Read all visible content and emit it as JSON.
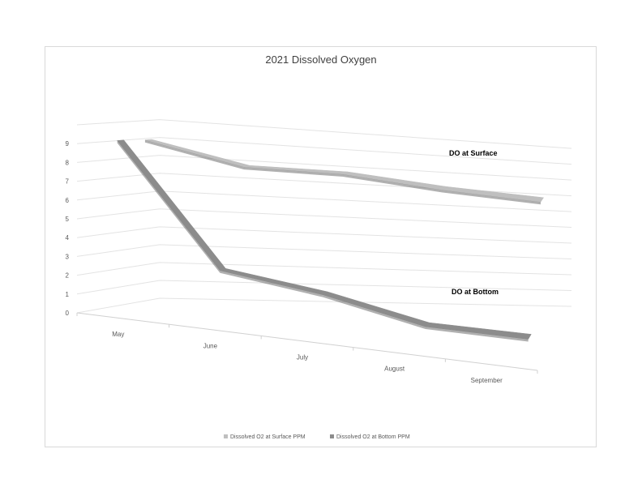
{
  "chart_data": {
    "type": "line",
    "title": "2021 Dissolved Oxygen",
    "categories": [
      "May",
      "June",
      "July",
      "August",
      "September"
    ],
    "series": [
      {
        "name": "Dissolved O2 at Surface PPM",
        "values": [
          9.0,
          8.0,
          8.1,
          7.7,
          7.5
        ],
        "color": "#bfbfbf"
      },
      {
        "name": "Dissolved O2 at Bottom PPM",
        "values": [
          9.1,
          2.6,
          1.8,
          0.5,
          0.3
        ],
        "color": "#8c8c8c"
      }
    ],
    "y_ticks": [
      "0",
      "1",
      "2",
      "3",
      "4",
      "5",
      "6",
      "7",
      "8",
      "9"
    ],
    "ylim": [
      0,
      10
    ],
    "annotations": [
      "DO at Surface",
      "DO at Bottom"
    ],
    "legend_position": "bottom",
    "grid": true
  }
}
